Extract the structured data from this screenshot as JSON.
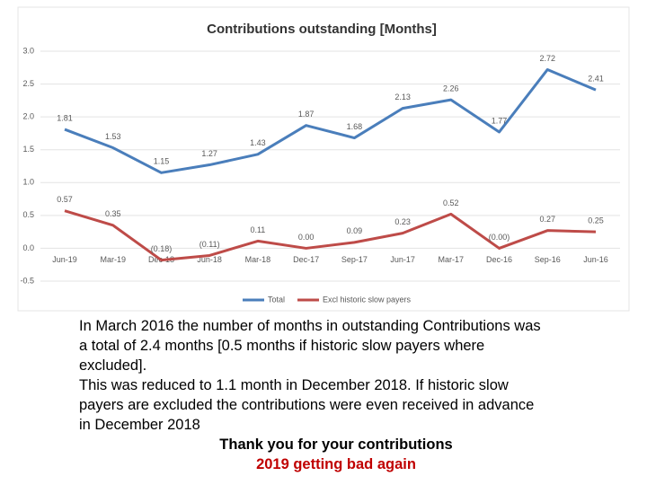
{
  "chart_data": {
    "type": "line",
    "title": "Contributions outstanding [Months]",
    "categories": [
      "Jun-19",
      "Mar-19",
      "Dec-18",
      "Jun-18",
      "Mar-18",
      "Dec-17",
      "Sep-17",
      "Jun-17",
      "Mar-17",
      "Dec-16",
      "Sep-16",
      "Jun-16"
    ],
    "series": [
      {
        "name": "Total",
        "color": "#4a7ebb",
        "values": [
          1.81,
          1.53,
          1.15,
          1.27,
          1.43,
          1.87,
          1.68,
          2.13,
          2.26,
          1.77,
          2.72,
          2.41
        ],
        "value_labels": [
          "1.81",
          "1.53",
          "1.15",
          "1.27",
          "1.43",
          "1.87",
          "1.68",
          "2.13",
          "2.26",
          "1.77",
          "2.72",
          "2.41"
        ]
      },
      {
        "name": "Excl historic slow payers",
        "color": "#be4b48",
        "values": [
          0.57,
          0.35,
          -0.18,
          -0.11,
          0.11,
          0,
          0.09,
          0.23,
          0.52,
          0,
          0.27,
          0.25
        ],
        "value_labels": [
          "0.57",
          "0.35",
          "(0.18)",
          "(0.11)",
          "0.11",
          "0.00",
          "0.09",
          "0.23",
          "0.52",
          "(0.00)",
          "0.27",
          "0.25"
        ]
      }
    ],
    "ylim": [
      -0.5,
      3.0
    ],
    "yticks": [
      {
        "value": -0.5,
        "label": "-0.5"
      },
      {
        "value": 0,
        "label": "0.0"
      },
      0.5,
      {
        "value": 1,
        "label": "1.0"
      },
      1.5,
      {
        "value": 2,
        "label": "2.0"
      },
      2.5,
      {
        "value": 3,
        "label": "3.0"
      }
    ],
    "grid": true,
    "legend": "bottom"
  },
  "notes": {
    "lines": [
      "In March 2016 the number of months in outstanding Contributions was",
      "a total of 2.4 months [0.5 months if historic slow payers where",
      "excluded].",
      "This was reduced to 1.1 month in December 2018. If historic slow",
      "payers are excluded the contributions were even received in advance",
      "in December 2018"
    ],
    "thanks": "Thank you for your contributions",
    "warning": "2019 getting bad again"
  }
}
